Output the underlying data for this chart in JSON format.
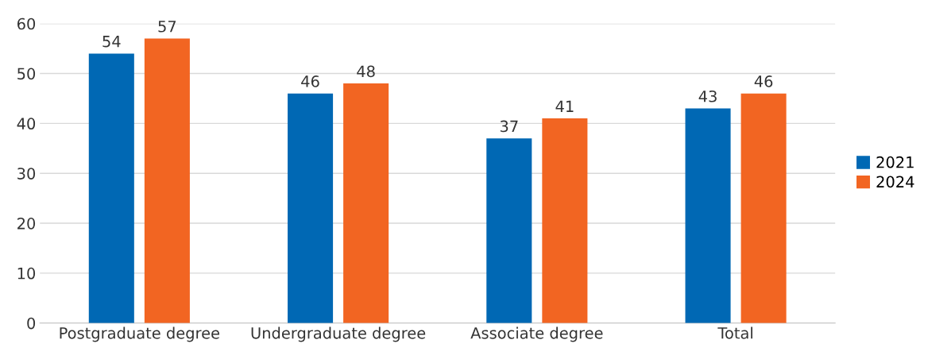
{
  "chart_data": {
    "type": "bar",
    "categories": [
      "Postgraduate degree",
      "Undergraduate degree",
      "Associate degree",
      "Total"
    ],
    "series": [
      {
        "name": "2021",
        "color": "#0068b4",
        "values": [
          54,
          46,
          37,
          43
        ]
      },
      {
        "name": "2024",
        "color": "#f26522",
        "values": [
          57,
          48,
          41,
          46
        ]
      }
    ],
    "ylim": [
      0,
      60
    ],
    "yticks": [
      0,
      10,
      20,
      30,
      40,
      50,
      60
    ],
    "grid": "y",
    "legend": "right",
    "data_labels": true
  }
}
